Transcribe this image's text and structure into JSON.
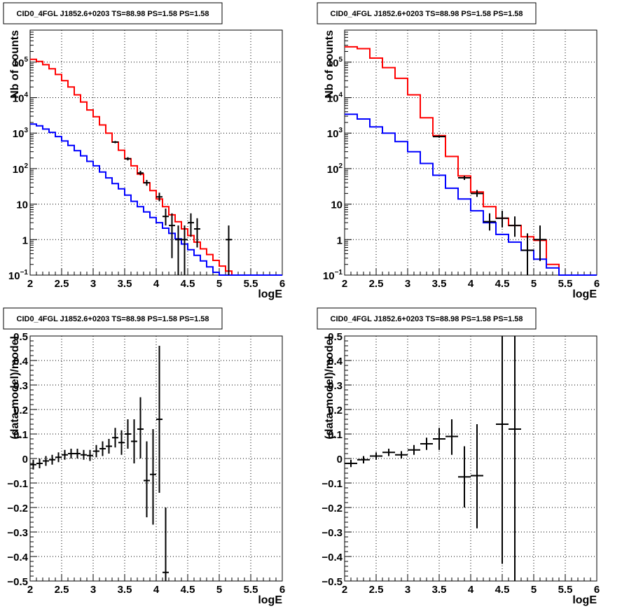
{
  "colors": {
    "total_model": "#ff0000",
    "component_model": "#0000ff",
    "data": "#000000",
    "grid": "#000000",
    "background": "#ffffff"
  },
  "chart_data": [
    {
      "type": "histogram",
      "title": "CID0_4FGL J1852.6+0203 TS=88.98 PS=1.58 PS=1.58",
      "xlabel": "logE",
      "ylabel": "Nb of counts",
      "xlim": [
        2,
        6
      ],
      "ylim": [
        0.1,
        800000
      ],
      "log_y": true,
      "grid": true,
      "xticks": [
        "2",
        "2.5",
        "3",
        "3.5",
        "4",
        "4.5",
        "5",
        "5.5",
        "6"
      ],
      "yticks": [
        {
          "value": 0.1,
          "label": "10",
          "sup": "−1"
        },
        {
          "value": 1,
          "label": "1",
          "sup": ""
        },
        {
          "value": 10,
          "label": "10",
          "sup": ""
        },
        {
          "value": 100,
          "label": "10",
          "sup": "2"
        },
        {
          "value": 1000,
          "label": "10",
          "sup": "3"
        },
        {
          "value": 10000,
          "label": "10",
          "sup": "4"
        },
        {
          "value": 100000,
          "label": "10",
          "sup": "5"
        }
      ],
      "series": [
        {
          "kind": "step",
          "color": "#ff0000",
          "bin_width": 0.1,
          "x": [
            2.0,
            2.1,
            2.2,
            2.3,
            2.4,
            2.5,
            2.6,
            2.7,
            2.8,
            2.9,
            3.0,
            3.1,
            3.2,
            3.3,
            3.4,
            3.5,
            3.6,
            3.7,
            3.8,
            3.9,
            4.0,
            4.1,
            4.2,
            4.3,
            4.4,
            4.5,
            4.6,
            4.7,
            4.8,
            4.9,
            5.0,
            5.1,
            5.2,
            5.3,
            5.4,
            5.5,
            5.6,
            5.7,
            5.8,
            5.9
          ],
          "y": [
            120000,
            105000,
            85000,
            65000,
            45000,
            30000,
            20000,
            12000,
            7500,
            4500,
            2900,
            1700,
            1000,
            560,
            330,
            190,
            120,
            70,
            40,
            24,
            14,
            8.5,
            5.0,
            3.2,
            2.0,
            1.3,
            0.85,
            0.55,
            0.38,
            0.26,
            0.18,
            0.13,
            0.1,
            0.1,
            0.1,
            0.1,
            0.1,
            0.1,
            0.1,
            0.1
          ]
        },
        {
          "kind": "step",
          "color": "#0000ff",
          "bin_width": 0.1,
          "x": [
            2.0,
            2.1,
            2.2,
            2.3,
            2.4,
            2.5,
            2.6,
            2.7,
            2.8,
            2.9,
            3.0,
            3.1,
            3.2,
            3.3,
            3.4,
            3.5,
            3.6,
            3.7,
            3.8,
            3.9,
            4.0,
            4.1,
            4.2,
            4.3,
            4.4,
            4.5,
            4.6,
            4.7,
            4.8,
            4.9,
            5.0,
            5.1,
            5.2,
            5.3,
            5.4,
            5.5,
            5.6,
            5.7,
            5.8,
            5.9
          ],
          "y": [
            1800,
            1600,
            1300,
            1050,
            800,
            600,
            450,
            320,
            230,
            160,
            120,
            80,
            55,
            38,
            27,
            18,
            12,
            8.5,
            6.0,
            4.2,
            3.0,
            2.1,
            1.5,
            1.05,
            0.75,
            0.52,
            0.36,
            0.25,
            0.17,
            0.12,
            0.1,
            0.1,
            0.1,
            0.1,
            0.1,
            0.1,
            0.1,
            0.1,
            0.1,
            0.1
          ]
        },
        {
          "kind": "errorbars",
          "color": "#000000",
          "half_width": 0.05,
          "points": [
            {
              "x": 3.35,
              "y": 560,
              "lo": 520,
              "hi": 600
            },
            {
              "x": 3.55,
              "y": 190,
              "lo": 170,
              "hi": 210
            },
            {
              "x": 3.75,
              "y": 75,
              "lo": 65,
              "hi": 87
            },
            {
              "x": 3.85,
              "y": 40,
              "lo": 33,
              "hi": 48
            },
            {
              "x": 4.05,
              "y": 16,
              "lo": 12,
              "hi": 21
            },
            {
              "x": 4.15,
              "y": 4.5,
              "lo": 2.5,
              "hi": 7.5
            },
            {
              "x": 4.25,
              "y": 2.5,
              "lo": 0.3,
              "hi": 5.5
            },
            {
              "x": 4.35,
              "y": 1.0,
              "lo": 0.1,
              "hi": 2.5
            },
            {
              "x": 4.45,
              "y": 1.0,
              "lo": 0.1,
              "hi": 2.5
            },
            {
              "x": 4.55,
              "y": 3.0,
              "lo": 1.2,
              "hi": 5.5
            },
            {
              "x": 4.65,
              "y": 2.0,
              "lo": 0.6,
              "hi": 4.0
            },
            {
              "x": 5.15,
              "y": 1.0,
              "lo": 0.1,
              "hi": 2.5
            }
          ]
        }
      ]
    },
    {
      "type": "histogram",
      "title": "CID0_4FGL J1852.6+0203 TS=88.98 PS=1.58 PS=1.58",
      "xlabel": "logE",
      "ylabel": "Nb of counts",
      "xlim": [
        2,
        6
      ],
      "ylim": [
        0.1,
        800000
      ],
      "log_y": true,
      "grid": true,
      "xticks": [
        "2",
        "2.5",
        "3",
        "3.5",
        "4",
        "4.5",
        "5",
        "5.5",
        "6"
      ],
      "yticks": [
        {
          "value": 0.1,
          "label": "10",
          "sup": "−1"
        },
        {
          "value": 1,
          "label": "1",
          "sup": ""
        },
        {
          "value": 10,
          "label": "10",
          "sup": ""
        },
        {
          "value": 100,
          "label": "10",
          "sup": "2"
        },
        {
          "value": 1000,
          "label": "10",
          "sup": "3"
        },
        {
          "value": 10000,
          "label": "10",
          "sup": "4"
        },
        {
          "value": 100000,
          "label": "10",
          "sup": "5"
        }
      ],
      "series": [
        {
          "kind": "step",
          "color": "#ff0000",
          "bin_width": 0.2,
          "x": [
            2.0,
            2.2,
            2.4,
            2.6,
            2.8,
            3.0,
            3.2,
            3.4,
            3.6,
            3.8,
            4.0,
            4.2,
            4.4,
            4.6,
            4.8,
            5.0,
            5.2,
            5.4,
            5.6,
            5.8
          ],
          "y": [
            270000,
            240000,
            130000,
            70000,
            35000,
            12000,
            2700,
            850,
            220,
            62,
            22,
            8.5,
            4.0,
            2.5,
            1.2,
            0.95,
            0.2,
            0.1,
            0.1,
            0.1
          ]
        },
        {
          "kind": "step",
          "color": "#0000ff",
          "bin_width": 0.2,
          "x": [
            2.0,
            2.2,
            2.4,
            2.6,
            2.8,
            3.0,
            3.2,
            3.4,
            3.6,
            3.8,
            4.0,
            4.2,
            4.4,
            4.6,
            4.8,
            5.0,
            5.2,
            5.4,
            5.6,
            5.8
          ],
          "y": [
            3400,
            2500,
            1500,
            1000,
            580,
            300,
            140,
            65,
            28,
            14,
            6.5,
            3.0,
            1.4,
            0.85,
            0.5,
            0.28,
            0.16,
            0.1,
            0.1,
            0.1
          ]
        },
        {
          "kind": "errorbars",
          "color": "#000000",
          "half_width": 0.1,
          "points": [
            {
              "x": 3.5,
              "y": 800,
              "lo": 740,
              "hi": 860
            },
            {
              "x": 3.9,
              "y": 55,
              "lo": 48,
              "hi": 63
            },
            {
              "x": 4.1,
              "y": 20,
              "lo": 16,
              "hi": 25
            },
            {
              "x": 4.3,
              "y": 3.2,
              "lo": 1.8,
              "hi": 5.5
            },
            {
              "x": 4.5,
              "y": 4.0,
              "lo": 2.2,
              "hi": 6.5
            },
            {
              "x": 4.7,
              "y": 2.5,
              "lo": 1.2,
              "hi": 4.5
            },
            {
              "x": 4.9,
              "y": 0.5,
              "lo": 0.1,
              "hi": 1.5
            },
            {
              "x": 5.1,
              "y": 1.0,
              "lo": 0.25,
              "hi": 2.5
            }
          ]
        }
      ]
    },
    {
      "type": "scatter",
      "title": "CID0_4FGL J1852.6+0203 TS=88.98 PS=1.58 PS=1.58",
      "xlabel": "logE",
      "ylabel": "(data-model)/model",
      "xlim": [
        2,
        6
      ],
      "ylim": [
        -0.5,
        0.5
      ],
      "log_y": false,
      "grid": true,
      "xticks": [
        "2",
        "2.5",
        "3",
        "3.5",
        "4",
        "4.5",
        "5",
        "5.5",
        "6"
      ],
      "yticks": [
        {
          "value": -0.5,
          "label": "−0.5",
          "sup": ""
        },
        {
          "value": -0.4,
          "label": "−0.4",
          "sup": ""
        },
        {
          "value": -0.3,
          "label": "−0.3",
          "sup": ""
        },
        {
          "value": -0.2,
          "label": "−0.2",
          "sup": ""
        },
        {
          "value": -0.1,
          "label": "−0.1",
          "sup": ""
        },
        {
          "value": 0,
          "label": "0",
          "sup": ""
        },
        {
          "value": 0.1,
          "label": "0.1",
          "sup": ""
        },
        {
          "value": 0.2,
          "label": "0.2",
          "sup": ""
        },
        {
          "value": 0.3,
          "label": "0.3",
          "sup": ""
        },
        {
          "value": 0.4,
          "label": "0.4",
          "sup": ""
        },
        {
          "value": 0.5,
          "label": "0.5",
          "sup": ""
        }
      ],
      "series": [
        {
          "kind": "errorbars",
          "color": "#000000",
          "half_width": 0.05,
          "points": [
            {
              "x": 2.05,
              "y": -0.025,
              "lo": -0.045,
              "hi": -0.005
            },
            {
              "x": 2.15,
              "y": -0.02,
              "lo": -0.04,
              "hi": 0.0
            },
            {
              "x": 2.25,
              "y": -0.01,
              "lo": -0.03,
              "hi": 0.01
            },
            {
              "x": 2.35,
              "y": -0.005,
              "lo": -0.025,
              "hi": 0.015
            },
            {
              "x": 2.45,
              "y": 0.005,
              "lo": -0.015,
              "hi": 0.025
            },
            {
              "x": 2.55,
              "y": 0.015,
              "lo": -0.005,
              "hi": 0.035
            },
            {
              "x": 2.65,
              "y": 0.02,
              "lo": 0.0,
              "hi": 0.04
            },
            {
              "x": 2.75,
              "y": 0.02,
              "lo": 0.0,
              "hi": 0.04
            },
            {
              "x": 2.85,
              "y": 0.015,
              "lo": -0.005,
              "hi": 0.035
            },
            {
              "x": 2.95,
              "y": 0.012,
              "lo": -0.01,
              "hi": 0.035
            },
            {
              "x": 3.05,
              "y": 0.03,
              "lo": 0.005,
              "hi": 0.055
            },
            {
              "x": 3.15,
              "y": 0.04,
              "lo": 0.01,
              "hi": 0.07
            },
            {
              "x": 3.25,
              "y": 0.05,
              "lo": 0.02,
              "hi": 0.08
            },
            {
              "x": 3.35,
              "y": 0.085,
              "lo": 0.045,
              "hi": 0.125
            },
            {
              "x": 3.45,
              "y": 0.065,
              "lo": 0.015,
              "hi": 0.115
            },
            {
              "x": 3.55,
              "y": 0.1,
              "lo": 0.04,
              "hi": 0.16
            },
            {
              "x": 3.65,
              "y": 0.07,
              "lo": -0.02,
              "hi": 0.16
            },
            {
              "x": 3.75,
              "y": 0.12,
              "lo": 0.0,
              "hi": 0.25
            },
            {
              "x": 3.85,
              "y": -0.09,
              "lo": -0.24,
              "hi": 0.07
            },
            {
              "x": 3.95,
              "y": -0.065,
              "lo": -0.27,
              "hi": 0.12
            },
            {
              "x": 4.05,
              "y": 0.16,
              "lo": -0.14,
              "hi": 0.46
            },
            {
              "x": 4.15,
              "y": -0.465,
              "lo": -0.5,
              "hi": -0.2
            }
          ]
        }
      ]
    },
    {
      "type": "scatter",
      "title": "CID0_4FGL J1852.6+0203 TS=88.98 PS=1.58 PS=1.58",
      "xlabel": "logE",
      "ylabel": "(data-model)/model",
      "xlim": [
        2,
        6
      ],
      "ylim": [
        -0.5,
        0.5
      ],
      "log_y": false,
      "grid": true,
      "xticks": [
        "2",
        "2.5",
        "3",
        "3.5",
        "4",
        "4.5",
        "5",
        "5.5",
        "6"
      ],
      "yticks": [
        {
          "value": -0.5,
          "label": "−0.5",
          "sup": ""
        },
        {
          "value": -0.4,
          "label": "−0.4",
          "sup": ""
        },
        {
          "value": -0.3,
          "label": "−0.3",
          "sup": ""
        },
        {
          "value": -0.2,
          "label": "−0.2",
          "sup": ""
        },
        {
          "value": -0.1,
          "label": "−0.1",
          "sup": ""
        },
        {
          "value": 0,
          "label": "0",
          "sup": ""
        },
        {
          "value": 0.1,
          "label": "0.1",
          "sup": ""
        },
        {
          "value": 0.2,
          "label": "0.2",
          "sup": ""
        },
        {
          "value": 0.3,
          "label": "0.3",
          "sup": ""
        },
        {
          "value": 0.4,
          "label": "0.4",
          "sup": ""
        },
        {
          "value": 0.5,
          "label": "0.5",
          "sup": ""
        }
      ],
      "series": [
        {
          "kind": "errorbars",
          "color": "#000000",
          "half_width": 0.1,
          "points": [
            {
              "x": 2.1,
              "y": -0.02,
              "lo": -0.035,
              "hi": -0.005
            },
            {
              "x": 2.3,
              "y": -0.005,
              "lo": -0.02,
              "hi": 0.01
            },
            {
              "x": 2.5,
              "y": 0.01,
              "lo": -0.005,
              "hi": 0.025
            },
            {
              "x": 2.7,
              "y": 0.025,
              "lo": 0.01,
              "hi": 0.04
            },
            {
              "x": 2.9,
              "y": 0.015,
              "lo": 0.0,
              "hi": 0.03
            },
            {
              "x": 3.1,
              "y": 0.035,
              "lo": 0.015,
              "hi": 0.055
            },
            {
              "x": 3.3,
              "y": 0.06,
              "lo": 0.035,
              "hi": 0.085
            },
            {
              "x": 3.5,
              "y": 0.08,
              "lo": 0.035,
              "hi": 0.125
            },
            {
              "x": 3.7,
              "y": 0.09,
              "lo": 0.015,
              "hi": 0.16
            },
            {
              "x": 3.9,
              "y": -0.075,
              "lo": -0.2,
              "hi": 0.05
            },
            {
              "x": 4.1,
              "y": -0.07,
              "lo": -0.285,
              "hi": 0.14
            },
            {
              "x": 4.5,
              "y": 0.14,
              "lo": -0.43,
              "hi": 0.5
            },
            {
              "x": 4.7,
              "y": 0.12,
              "lo": -0.5,
              "hi": 0.5
            }
          ]
        }
      ]
    }
  ]
}
